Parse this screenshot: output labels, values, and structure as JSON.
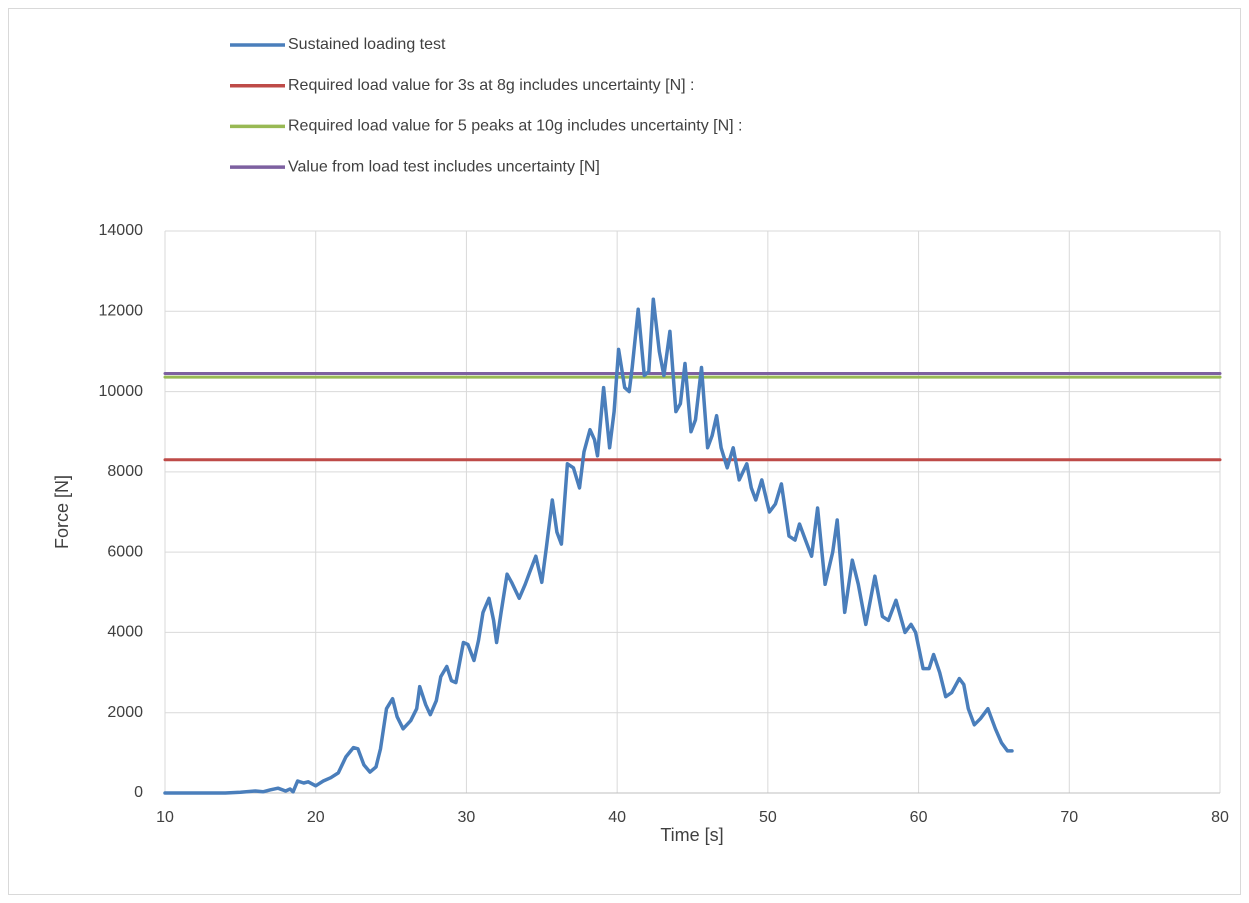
{
  "chart_data": {
    "type": "line",
    "xlabel": "Time [s]",
    "ylabel": "Force [N]",
    "xlim": [
      10,
      80
    ],
    "xticks": [
      10,
      20,
      30,
      40,
      50,
      60,
      70,
      80
    ],
    "ylim": [
      0,
      14000
    ],
    "yticks": [
      0,
      2000,
      4000,
      6000,
      8000,
      10000,
      12000,
      14000
    ],
    "grid": true,
    "legend": "top",
    "series": [
      {
        "name": "Sustained loading test",
        "color": "#4a7ebb",
        "x": [
          10,
          13,
          14,
          15,
          16,
          16.5,
          17,
          17.5,
          18,
          18.3,
          18.5,
          18.8,
          19.2,
          19.5,
          20,
          20.5,
          21,
          21.5,
          22,
          22.5,
          22.8,
          23.2,
          23.6,
          24,
          24.3,
          24.7,
          25.1,
          25.4,
          25.8,
          26.3,
          26.7,
          26.9,
          27.3,
          27.6,
          28,
          28.3,
          28.7,
          29,
          29.3,
          29.8,
          30.1,
          30.5,
          30.8,
          31.1,
          31.5,
          31.8,
          32,
          32.3,
          32.7,
          33,
          33.5,
          33.9,
          34.2,
          34.6,
          35,
          35.3,
          35.7,
          36,
          36.3,
          36.7,
          37.1,
          37.5,
          37.8,
          38.2,
          38.5,
          38.7,
          39.1,
          39.5,
          39.8,
          40.1,
          40.5,
          40.8,
          41,
          41.4,
          41.8,
          42.1,
          42.4,
          42.8,
          43.1,
          43.5,
          43.9,
          44.2,
          44.5,
          44.9,
          45.2,
          45.6,
          46,
          46.3,
          46.6,
          46.9,
          47.3,
          47.7,
          48.1,
          48.6,
          48.9,
          49.2,
          49.6,
          50.1,
          50.5,
          50.9,
          51.4,
          51.8,
          52.1,
          52.5,
          52.9,
          53.3,
          53.8,
          54.3,
          54.6,
          55.1,
          55.6,
          56,
          56.5,
          57.1,
          57.6,
          58,
          58.5,
          59.1,
          59.5,
          59.8,
          60.3,
          60.7,
          61,
          61.4,
          61.8,
          62.2,
          62.7,
          63,
          63.3,
          63.7,
          64.1,
          64.6,
          65.1,
          65.5,
          65.9,
          66.2
        ],
        "values": [
          0,
          0,
          0,
          20,
          50,
          30,
          80,
          120,
          50,
          100,
          30,
          300,
          250,
          280,
          180,
          300,
          380,
          500,
          900,
          1130,
          1100,
          700,
          520,
          650,
          1100,
          2100,
          2350,
          1900,
          1600,
          1800,
          2100,
          2650,
          2200,
          1950,
          2300,
          2900,
          3150,
          2800,
          2750,
          3750,
          3700,
          3300,
          3800,
          4500,
          4850,
          4300,
          3750,
          4500,
          5450,
          5250,
          4850,
          5200,
          5500,
          5900,
          5250,
          6100,
          7300,
          6500,
          6200,
          8200,
          8100,
          7600,
          8500,
          9050,
          8800,
          8400,
          10100,
          8600,
          9500,
          11050,
          10100,
          10000,
          10600,
          12050,
          10400,
          10500,
          12300,
          11000,
          10400,
          11500,
          9500,
          9700,
          10700,
          9000,
          9300,
          10600,
          8600,
          8900,
          9400,
          8600,
          8100,
          8600,
          7800,
          8200,
          7600,
          7300,
          7800,
          7000,
          7200,
          7700,
          6400,
          6300,
          6700,
          6300,
          5900,
          7100,
          5200,
          6000,
          6800,
          4500,
          5800,
          5200,
          4200,
          5400,
          4400,
          4300,
          4800,
          4000,
          4200,
          4000,
          3100,
          3100,
          3450,
          3000,
          2400,
          2500,
          2850,
          2700,
          2100,
          1700,
          1850,
          2100,
          1600,
          1250,
          1050,
          1050
        ]
      },
      {
        "name": "Required load value for 3s at 8g includes uncertainty [N] :",
        "color": "#be4b48",
        "x": [
          10,
          80
        ],
        "values": [
          8300,
          8300
        ]
      },
      {
        "name": "Required load value for 5 peaks at 10g includes uncertainty [N] :",
        "color": "#98b954",
        "x": [
          10,
          80
        ],
        "values": [
          10360,
          10360
        ]
      },
      {
        "name": "Value from load test includes uncertainty [N]",
        "color": "#7d60a0",
        "x": [
          10,
          80
        ],
        "values": [
          10450,
          10450
        ]
      }
    ]
  }
}
